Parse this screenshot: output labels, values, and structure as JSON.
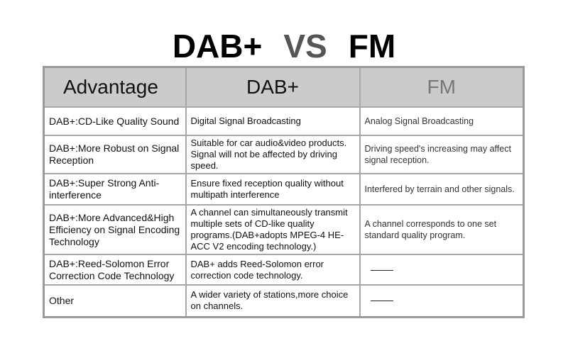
{
  "title": {
    "left": "DAB+",
    "vs": "VS",
    "right": "FM"
  },
  "headers": [
    "Advantage",
    "DAB+",
    "FM"
  ],
  "rows": [
    {
      "advantage": "DAB+:CD-Like Quality Sound",
      "dab": "Digital Signal Broadcasting",
      "fm": "Analog Signal Broadcasting"
    },
    {
      "advantage": "DAB+:More Robust on Signal Reception",
      "dab": "Suitable for car audio&video products. Signal will not be affected by driving speed.",
      "fm": "Driving speed's increasing may affect signal reception."
    },
    {
      "advantage": "DAB+:Super Strong Anti-interference",
      "dab": "Ensure fixed reception quality without multipath interference",
      "fm": "Interfered by terrain and other signals."
    },
    {
      "advantage": "DAB+:More Advanced&High Efficiency on Signal Encoding Technology",
      "dab": "A channel can simultaneously transmit multiple sets of CD-like quality programs.(DAB+adopts MPEG-4 HE-ACC V2 encoding technology.)",
      "fm": "A channel corresponds to one set standard quality program."
    },
    {
      "advantage": "DAB+:Reed-Solomon Error Correction Code Technology",
      "dab": "DAB+ adds Reed-Solomon error correction code technology.",
      "fm": ""
    },
    {
      "advantage": "Other",
      "dab": "A wider variety of stations,more choice on channels.",
      "fm": ""
    }
  ]
}
